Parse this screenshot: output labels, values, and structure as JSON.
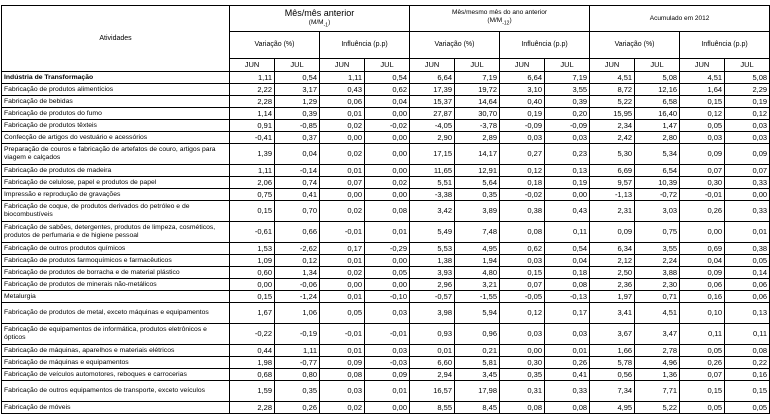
{
  "table": {
    "activities_header": "Atividades",
    "groups": [
      {
        "title": "Mês/mês anterior",
        "basis": "(M/M",
        "basis_sub": "-1",
        "basis_end": ")"
      },
      {
        "title": "Mês/mesmo mês do ano anterior",
        "basis": "(M/M",
        "basis_sub": "-12",
        "basis_end": ")"
      },
      {
        "title": "Acumulado em 2012"
      }
    ],
    "subheaders": [
      "Variação (%)",
      "Influência (p.p)"
    ],
    "months": [
      "JUN",
      "JUL"
    ],
    "rows": [
      {
        "label": "Indústria de Transformação",
        "values": [
          "1,11",
          "0,54",
          "1,11",
          "0,54",
          "6,64",
          "7,19",
          "6,64",
          "7,19",
          "4,51",
          "5,08",
          "4,51",
          "5,08"
        ]
      },
      {
        "label": "Fabricação de produtos alimentícios",
        "values": [
          "2,22",
          "3,17",
          "0,43",
          "0,62",
          "17,39",
          "19,72",
          "3,10",
          "3,55",
          "8,72",
          "12,16",
          "1,64",
          "2,29"
        ]
      },
      {
        "label": "Fabricação de bebidas",
        "values": [
          "2,28",
          "1,29",
          "0,06",
          "0,04",
          "15,37",
          "14,64",
          "0,40",
          "0,39",
          "5,22",
          "6,58",
          "0,15",
          "0,19"
        ]
      },
      {
        "label": "Fabricação de produtos do fumo",
        "values": [
          "1,14",
          "0,39",
          "0,01",
          "0,00",
          "27,87",
          "30,70",
          "0,19",
          "0,20",
          "15,95",
          "16,40",
          "0,12",
          "0,12"
        ]
      },
      {
        "label": "Fabricação de produtos têxteis",
        "values": [
          "0,91",
          "-0,85",
          "0,02",
          "-0,02",
          "-4,05",
          "-3,78",
          "-0,09",
          "-0,09",
          "2,34",
          "1,47",
          "0,05",
          "0,03"
        ]
      },
      {
        "label": "Confecção de artigos do vestuário e acessórios",
        "values": [
          "-0,41",
          "0,37",
          "0,00",
          "0,00",
          "2,90",
          "2,89",
          "0,03",
          "0,03",
          "2,42",
          "2,80",
          "0,03",
          "0,03"
        ]
      },
      {
        "label": "Preparação de couros e fabricação de artefatos de couro, artigos para viagem e calçados",
        "values": [
          "1,39",
          "0,04",
          "0,02",
          "0,00",
          "17,15",
          "14,17",
          "0,27",
          "0,23",
          "5,30",
          "5,34",
          "0,09",
          "0,09"
        ]
      },
      {
        "label": "Fabricação de produtos de madeira",
        "values": [
          "1,11",
          "-0,14",
          "0,01",
          "0,00",
          "11,65",
          "12,91",
          "0,12",
          "0,13",
          "6,69",
          "6,54",
          "0,07",
          "0,07"
        ]
      },
      {
        "label": "Fabricação de celulose, papel e produtos de papel",
        "values": [
          "2,06",
          "0,74",
          "0,07",
          "0,02",
          "5,51",
          "5,64",
          "0,18",
          "0,19",
          "9,57",
          "10,39",
          "0,30",
          "0,33"
        ]
      },
      {
        "label": "Impressão e reprodução de gravações",
        "values": [
          "0,75",
          "0,41",
          "0,00",
          "0,00",
          "-3,38",
          "0,35",
          "-0,02",
          "0,00",
          "-1,13",
          "-0,72",
          "-0,01",
          "0,00"
        ]
      },
      {
        "label": "Fabricação de coque, de produtos derivados do petróleo e de biocombustíveis",
        "values": [
          "0,15",
          "0,70",
          "0,02",
          "0,08",
          "3,42",
          "3,89",
          "0,38",
          "0,43",
          "2,31",
          "3,03",
          "0,26",
          "0,33"
        ]
      },
      {
        "label": "Fabricação de sabões, detergentes, produtos de limpeza, cosméticos, produtos de perfumaria e de higiene pessoal",
        "values": [
          "-0,61",
          "0,66",
          "-0,01",
          "0,01",
          "5,49",
          "7,48",
          "0,08",
          "0,11",
          "0,09",
          "0,75",
          "0,00",
          "0,01"
        ]
      },
      {
        "label": "Fabricação de outros produtos químicos",
        "values": [
          "1,53",
          "-2,62",
          "0,17",
          "-0,29",
          "5,53",
          "4,95",
          "0,62",
          "0,54",
          "6,34",
          "3,55",
          "0,69",
          "0,38"
        ]
      },
      {
        "label": "Fabricação de produtos farmoquímicos e farmacêuticos",
        "values": [
          "1,09",
          "0,12",
          "0,01",
          "0,00",
          "1,38",
          "1,94",
          "0,03",
          "0,04",
          "2,12",
          "2,24",
          "0,04",
          "0,05"
        ]
      },
      {
        "label": "Fabricação de produtos de borracha e de material plástico",
        "values": [
          "0,60",
          "1,34",
          "0,02",
          "0,05",
          "3,93",
          "4,80",
          "0,15",
          "0,18",
          "2,50",
          "3,88",
          "0,09",
          "0,14"
        ]
      },
      {
        "label": "Fabricação de produtos de minerais não-metálicos",
        "values": [
          "0,00",
          "-0,06",
          "0,00",
          "0,00",
          "2,96",
          "3,21",
          "0,07",
          "0,08",
          "2,36",
          "2,30",
          "0,06",
          "0,06"
        ]
      },
      {
        "label": "Metalurgia",
        "values": [
          "0,15",
          "-1,24",
          "0,01",
          "-0,10",
          "-0,57",
          "-1,55",
          "-0,05",
          "-0,13",
          "1,97",
          "0,71",
          "0,16",
          "0,06"
        ]
      },
      {
        "label": "Fabricação de produtos de metal, exceto máquinas e equipamentos",
        "values": [
          "1,67",
          "1,06",
          "0,05",
          "0,03",
          "3,98",
          "5,94",
          "0,12",
          "0,17",
          "3,41",
          "4,51",
          "0,10",
          "0,13"
        ]
      },
      {
        "label": "Fabricação de equipamentos de informática, produtos eletrônicos e ópticos",
        "values": [
          "-0,22",
          "-0,19",
          "-0,01",
          "-0,01",
          "0,93",
          "0,96",
          "0,03",
          "0,03",
          "3,67",
          "3,47",
          "0,11",
          "0,11"
        ]
      },
      {
        "label": "Fabricação de máquinas, aparelhos e materiais elétricos",
        "values": [
          "0,44",
          "1,11",
          "0,01",
          "0,03",
          "0,01",
          "0,21",
          "0,00",
          "0,01",
          "1,66",
          "2,78",
          "0,05",
          "0,08"
        ]
      },
      {
        "label": "Fabricação de máquinas e equipamentos",
        "values": [
          "1,98",
          "-0,77",
          "0,09",
          "-0,03",
          "6,60",
          "5,81",
          "0,30",
          "0,26",
          "5,78",
          "4,96",
          "0,26",
          "0,22"
        ]
      },
      {
        "label": "Fabricação de veículos automotores, reboques e carrocerias",
        "values": [
          "0,68",
          "0,80",
          "0,08",
          "0,09",
          "2,94",
          "3,45",
          "0,35",
          "0,41",
          "0,56",
          "1,36",
          "0,07",
          "0,16"
        ]
      },
      {
        "label": "Fabricação de outros equipamentos de transporte, exceto veículos",
        "values": [
          "1,59",
          "0,35",
          "0,03",
          "0,01",
          "16,57",
          "17,98",
          "0,31",
          "0,33",
          "7,34",
          "7,71",
          "0,15",
          "0,15"
        ]
      },
      {
        "label": "Fabricação de móveis",
        "values": [
          "2,28",
          "0,26",
          "0,02",
          "0,00",
          "8,55",
          "8,45",
          "0,08",
          "0,08",
          "4,95",
          "5,22",
          "0,05",
          "0,05"
        ]
      }
    ]
  }
}
